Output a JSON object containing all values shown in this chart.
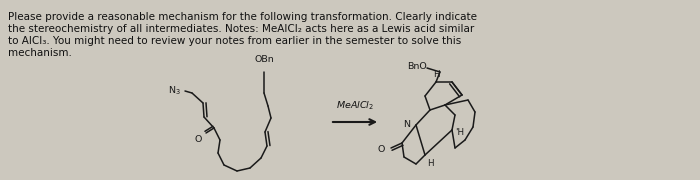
{
  "bg_color": "#ccc8be",
  "text_line1": "Please provide a reasonable mechanism for the following transformation. Clearly indicate",
  "text_line2": "the stereochemistry of all intermediates. Notes: MeAlCl₂ acts here as a Lewis acid similar",
  "text_line3": "to AlCl₃. You might need to review your notes from earlier in the semester to solve this",
  "text_line4": "mechanism.",
  "reagent_label": "MeAlCl₂",
  "text_fontsize": 7.5,
  "label_fontsize": 6.8,
  "line_color": "#1a1a1a",
  "line_width": 1.1,
  "bg_paper": "#cac5bb"
}
